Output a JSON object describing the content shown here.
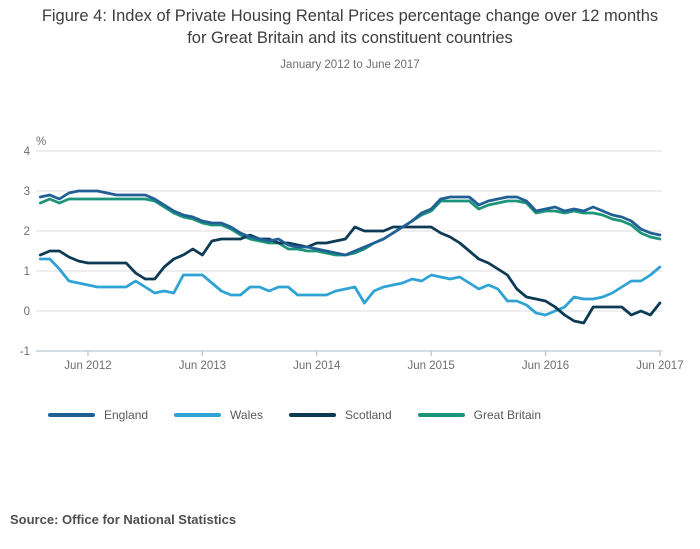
{
  "title": "Figure 4: Index of Private Housing Rental Prices percentage change over 12 months for Great Britain and its constituent countries",
  "subtitle": "January 2012 to June 2017",
  "source": "Source: Office for National Statistics",
  "chart_data": {
    "type": "line",
    "title": "Index of Private Housing Rental Prices percentage change over 12 months",
    "ylabel": "%",
    "ylim": [
      -1,
      4
    ],
    "yticks": [
      4,
      3,
      2,
      1,
      0,
      -1
    ],
    "grid": true,
    "legend_position": "bottom",
    "x_start": "2012-01",
    "x_end": "2017-06",
    "xticks": [
      "Jun 2012",
      "Jun 2013",
      "Jun 2014",
      "Jun 2015",
      "Jun 2016",
      "Jun 2017"
    ],
    "xtick_month_indices": [
      5,
      17,
      29,
      41,
      53,
      65
    ],
    "axis_color": "#b9c6d0",
    "grid_color": "#dcdcdc",
    "tick_label_color": "#6d6d6d",
    "series": [
      {
        "name": "England",
        "color": "#206095",
        "values": [
          2.85,
          2.9,
          2.8,
          2.95,
          3.0,
          3.0,
          3.0,
          2.95,
          2.9,
          2.9,
          2.9,
          2.9,
          2.8,
          2.65,
          2.5,
          2.4,
          2.35,
          2.25,
          2.2,
          2.2,
          2.1,
          1.95,
          1.85,
          1.8,
          1.75,
          1.8,
          1.65,
          1.6,
          1.6,
          1.55,
          1.5,
          1.45,
          1.4,
          1.5,
          1.6,
          1.7,
          1.8,
          1.95,
          2.1,
          2.25,
          2.45,
          2.55,
          2.8,
          2.85,
          2.85,
          2.85,
          2.65,
          2.75,
          2.8,
          2.85,
          2.85,
          2.75,
          2.5,
          2.55,
          2.6,
          2.5,
          2.55,
          2.5,
          2.6,
          2.5,
          2.4,
          2.35,
          2.25,
          2.05,
          1.95,
          1.9
        ]
      },
      {
        "name": "Wales",
        "color": "#30a3d4",
        "values": [
          1.3,
          1.3,
          1.05,
          0.75,
          0.7,
          0.65,
          0.6,
          0.6,
          0.6,
          0.6,
          0.75,
          0.6,
          0.45,
          0.5,
          0.45,
          0.9,
          0.9,
          0.9,
          0.7,
          0.5,
          0.4,
          0.4,
          0.6,
          0.6,
          0.5,
          0.6,
          0.6,
          0.4,
          0.4,
          0.4,
          0.4,
          0.5,
          0.55,
          0.6,
          0.2,
          0.5,
          0.6,
          0.65,
          0.7,
          0.8,
          0.75,
          0.9,
          0.85,
          0.8,
          0.85,
          0.7,
          0.55,
          0.65,
          0.55,
          0.25,
          0.25,
          0.15,
          -0.05,
          -0.1,
          0.0,
          0.1,
          0.35,
          0.3,
          0.3,
          0.35,
          0.45,
          0.6,
          0.75,
          0.75,
          0.9,
          1.1
        ]
      },
      {
        "name": "Scotland",
        "color": "#0d3a54",
        "values": [
          1.4,
          1.5,
          1.5,
          1.35,
          1.25,
          1.2,
          1.2,
          1.2,
          1.2,
          1.2,
          0.95,
          0.8,
          0.8,
          1.1,
          1.3,
          1.4,
          1.55,
          1.4,
          1.75,
          1.8,
          1.8,
          1.8,
          1.9,
          1.8,
          1.8,
          1.7,
          1.7,
          1.65,
          1.6,
          1.7,
          1.7,
          1.75,
          1.8,
          2.1,
          2.0,
          2.0,
          2.0,
          2.1,
          2.1,
          2.1,
          2.1,
          2.1,
          1.95,
          1.85,
          1.7,
          1.5,
          1.3,
          1.2,
          1.05,
          0.9,
          0.55,
          0.35,
          0.3,
          0.25,
          0.1,
          -0.1,
          -0.25,
          -0.3,
          0.1,
          0.1,
          0.1,
          0.1,
          -0.1,
          0.0,
          -0.1,
          0.2
        ]
      },
      {
        "name": "Great Britain",
        "color": "#1b9479",
        "values": [
          2.7,
          2.8,
          2.7,
          2.8,
          2.8,
          2.8,
          2.8,
          2.8,
          2.8,
          2.8,
          2.8,
          2.8,
          2.75,
          2.6,
          2.45,
          2.35,
          2.3,
          2.2,
          2.15,
          2.15,
          2.05,
          1.9,
          1.8,
          1.75,
          1.7,
          1.7,
          1.55,
          1.55,
          1.5,
          1.5,
          1.45,
          1.4,
          1.4,
          1.45,
          1.55,
          1.7,
          1.8,
          1.95,
          2.1,
          2.25,
          2.4,
          2.5,
          2.75,
          2.75,
          2.75,
          2.75,
          2.55,
          2.65,
          2.7,
          2.75,
          2.75,
          2.7,
          2.45,
          2.5,
          2.5,
          2.45,
          2.5,
          2.45,
          2.45,
          2.4,
          2.3,
          2.25,
          2.15,
          1.95,
          1.85,
          1.8
        ]
      }
    ]
  }
}
